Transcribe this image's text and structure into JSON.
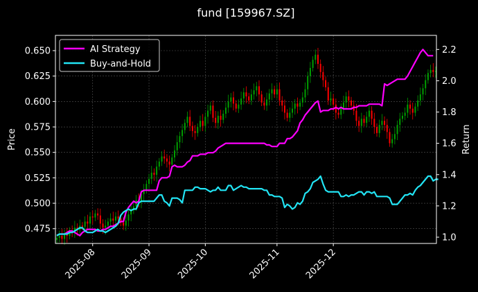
{
  "chart_data": {
    "type": "line",
    "title": "fund [159967.SZ]",
    "ylabel_left": "Price",
    "ylabel_right": "Return",
    "x_ticks": [
      "2025-08",
      "2025-09",
      "2025-10",
      "2025-11",
      "2025-12"
    ],
    "y_left_ticks": [
      "0.475",
      "0.500",
      "0.525",
      "0.550",
      "0.575",
      "0.600",
      "0.625",
      "0.650"
    ],
    "y_right_ticks": [
      "1.0",
      "1.2",
      "1.4",
      "1.6",
      "1.8",
      "2.0",
      "2.2"
    ],
    "ylim_left": [
      0.4605,
      0.665
    ],
    "ylim_right": [
      0.96,
      2.29
    ],
    "grid": true,
    "legend": "top-left",
    "colors": {
      "background": "#000000",
      "up": "#00a000",
      "down": "#ff0000",
      "strategy": "#ff00ff",
      "buyhold": "#22e5f5",
      "grid": "#555555",
      "text": "#ffffff"
    },
    "candles": {
      "close": [
        0.466,
        0.468,
        0.465,
        0.47,
        0.468,
        0.473,
        0.471,
        0.476,
        0.474,
        0.478,
        0.477,
        0.482,
        0.48,
        0.487,
        0.486,
        0.49,
        0.488,
        0.48,
        0.476,
        0.478,
        0.482,
        0.485,
        0.483,
        0.487,
        0.485,
        0.481,
        0.478,
        0.483,
        0.489,
        0.493,
        0.497,
        0.503,
        0.501,
        0.509,
        0.513,
        0.519,
        0.524,
        0.53,
        0.528,
        0.536,
        0.541,
        0.546,
        0.544,
        0.541,
        0.538,
        0.545,
        0.552,
        0.56,
        0.566,
        0.572,
        0.579,
        0.585,
        0.576,
        0.571,
        0.569,
        0.575,
        0.581,
        0.576,
        0.585,
        0.591,
        0.596,
        0.584,
        0.579,
        0.586,
        0.582,
        0.588,
        0.594,
        0.6,
        0.604,
        0.598,
        0.593,
        0.597,
        0.603,
        0.609,
        0.605,
        0.601,
        0.607,
        0.611,
        0.615,
        0.607,
        0.599,
        0.596,
        0.602,
        0.608,
        0.612,
        0.607,
        0.612,
        0.601,
        0.596,
        0.589,
        0.584,
        0.589,
        0.593,
        0.598,
        0.595,
        0.599,
        0.604,
        0.612,
        0.625,
        0.633,
        0.641,
        0.646,
        0.637,
        0.629,
        0.621,
        0.614,
        0.601,
        0.603,
        0.597,
        0.589,
        0.587,
        0.593,
        0.599,
        0.605,
        0.601,
        0.596,
        0.591,
        0.581,
        0.576,
        0.583,
        0.579,
        0.585,
        0.591,
        0.583,
        0.575,
        0.569,
        0.577,
        0.581,
        0.577,
        0.57,
        0.559,
        0.563,
        0.568,
        0.577,
        0.583,
        0.586,
        0.589,
        0.597,
        0.593,
        0.589,
        0.595,
        0.601,
        0.607,
        0.613,
        0.621,
        0.628,
        0.631,
        0.629,
        0.63
      ]
    },
    "series": [
      {
        "name": "AI Strategy",
        "values": [
          1.01,
          1.02,
          1.02,
          1.02,
          1.03,
          1.04,
          1.04,
          1.03,
          1.02,
          1.01,
          1.03,
          1.04,
          1.05,
          1.05,
          1.05,
          1.05,
          1.04,
          1.04,
          1.05,
          1.05,
          1.06,
          1.07,
          1.07,
          1.08,
          1.09,
          1.1,
          1.1,
          1.16,
          1.19,
          1.21,
          1.23,
          1.22,
          1.23,
          1.29,
          1.3,
          1.3,
          1.3,
          1.3,
          1.3,
          1.3,
          1.36,
          1.38,
          1.38,
          1.38,
          1.39,
          1.45,
          1.46,
          1.45,
          1.45,
          1.45,
          1.46,
          1.48,
          1.49,
          1.52,
          1.52,
          1.52,
          1.53,
          1.53,
          1.53,
          1.54,
          1.54,
          1.54,
          1.55,
          1.57,
          1.58,
          1.59,
          1.6,
          1.6,
          1.6,
          1.6,
          1.6,
          1.6,
          1.6,
          1.6,
          1.6,
          1.6,
          1.6,
          1.6,
          1.6,
          1.6,
          1.6,
          1.6,
          1.59,
          1.59,
          1.58,
          1.58,
          1.58,
          1.6,
          1.6,
          1.6,
          1.63,
          1.63,
          1.64,
          1.66,
          1.68,
          1.73,
          1.75,
          1.78,
          1.8,
          1.82,
          1.84,
          1.86,
          1.87,
          1.8,
          1.81,
          1.81,
          1.81,
          1.82,
          1.82,
          1.83,
          1.82,
          1.83,
          1.82,
          1.82,
          1.82,
          1.82,
          1.83,
          1.83,
          1.84,
          1.84,
          1.84,
          1.84,
          1.85,
          1.85,
          1.85,
          1.85,
          1.85,
          1.84,
          1.98,
          1.97,
          1.98,
          1.99,
          2.0,
          2.01,
          2.01,
          2.01,
          2.01,
          2.03,
          2.06,
          2.09,
          2.12,
          2.15,
          2.18,
          2.2,
          2.18,
          2.16,
          2.16,
          2.16
        ]
      },
      {
        "name": "Buy-and-Hold",
        "values": [
          1.01,
          1.02,
          1.02,
          1.02,
          1.02,
          1.03,
          1.03,
          1.04,
          1.05,
          1.06,
          1.06,
          1.04,
          1.03,
          1.03,
          1.03,
          1.04,
          1.05,
          1.04,
          1.04,
          1.03,
          1.04,
          1.05,
          1.06,
          1.07,
          1.09,
          1.14,
          1.16,
          1.17,
          1.18,
          1.17,
          1.18,
          1.18,
          1.22,
          1.23,
          1.23,
          1.23,
          1.23,
          1.23,
          1.23,
          1.25,
          1.27,
          1.27,
          1.23,
          1.22,
          1.2,
          1.25,
          1.25,
          1.25,
          1.24,
          1.22,
          1.3,
          1.3,
          1.3,
          1.3,
          1.32,
          1.32,
          1.31,
          1.31,
          1.31,
          1.3,
          1.29,
          1.3,
          1.3,
          1.32,
          1.3,
          1.3,
          1.3,
          1.33,
          1.33,
          1.3,
          1.31,
          1.32,
          1.33,
          1.32,
          1.32,
          1.31,
          1.31,
          1.31,
          1.31,
          1.31,
          1.31,
          1.3,
          1.3,
          1.27,
          1.27,
          1.26,
          1.26,
          1.26,
          1.25,
          1.19,
          1.21,
          1.2,
          1.18,
          1.19,
          1.22,
          1.21,
          1.23,
          1.28,
          1.29,
          1.31,
          1.35,
          1.36,
          1.37,
          1.39,
          1.34,
          1.3,
          1.29,
          1.29,
          1.29,
          1.29,
          1.29,
          1.26,
          1.26,
          1.27,
          1.26,
          1.27,
          1.27,
          1.28,
          1.29,
          1.29,
          1.27,
          1.29,
          1.29,
          1.28,
          1.29,
          1.26,
          1.26,
          1.26,
          1.26,
          1.26,
          1.25,
          1.21,
          1.21,
          1.21,
          1.23,
          1.25,
          1.27,
          1.27,
          1.28,
          1.27,
          1.3,
          1.32,
          1.33,
          1.35,
          1.37,
          1.39,
          1.39,
          1.36,
          1.37,
          1.37
        ]
      }
    ]
  }
}
